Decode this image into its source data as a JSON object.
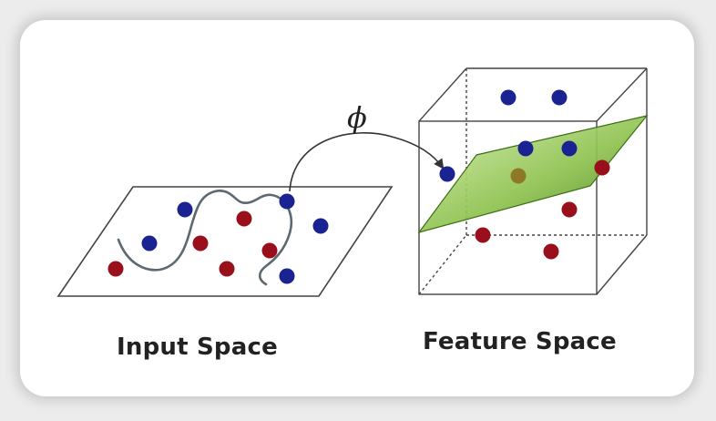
{
  "input_space": {
    "label": "Input Space"
  },
  "feature_space": {
    "label": "Feature Space"
  },
  "mapping": {
    "symbol": "ϕ"
  },
  "colors": {
    "blue_point": "#1a2391",
    "red_point": "#9a0f1c",
    "plane_green_light": "#c8e6a0",
    "plane_green_dark": "#4a8a1c",
    "line": "#3a3a3a"
  }
}
